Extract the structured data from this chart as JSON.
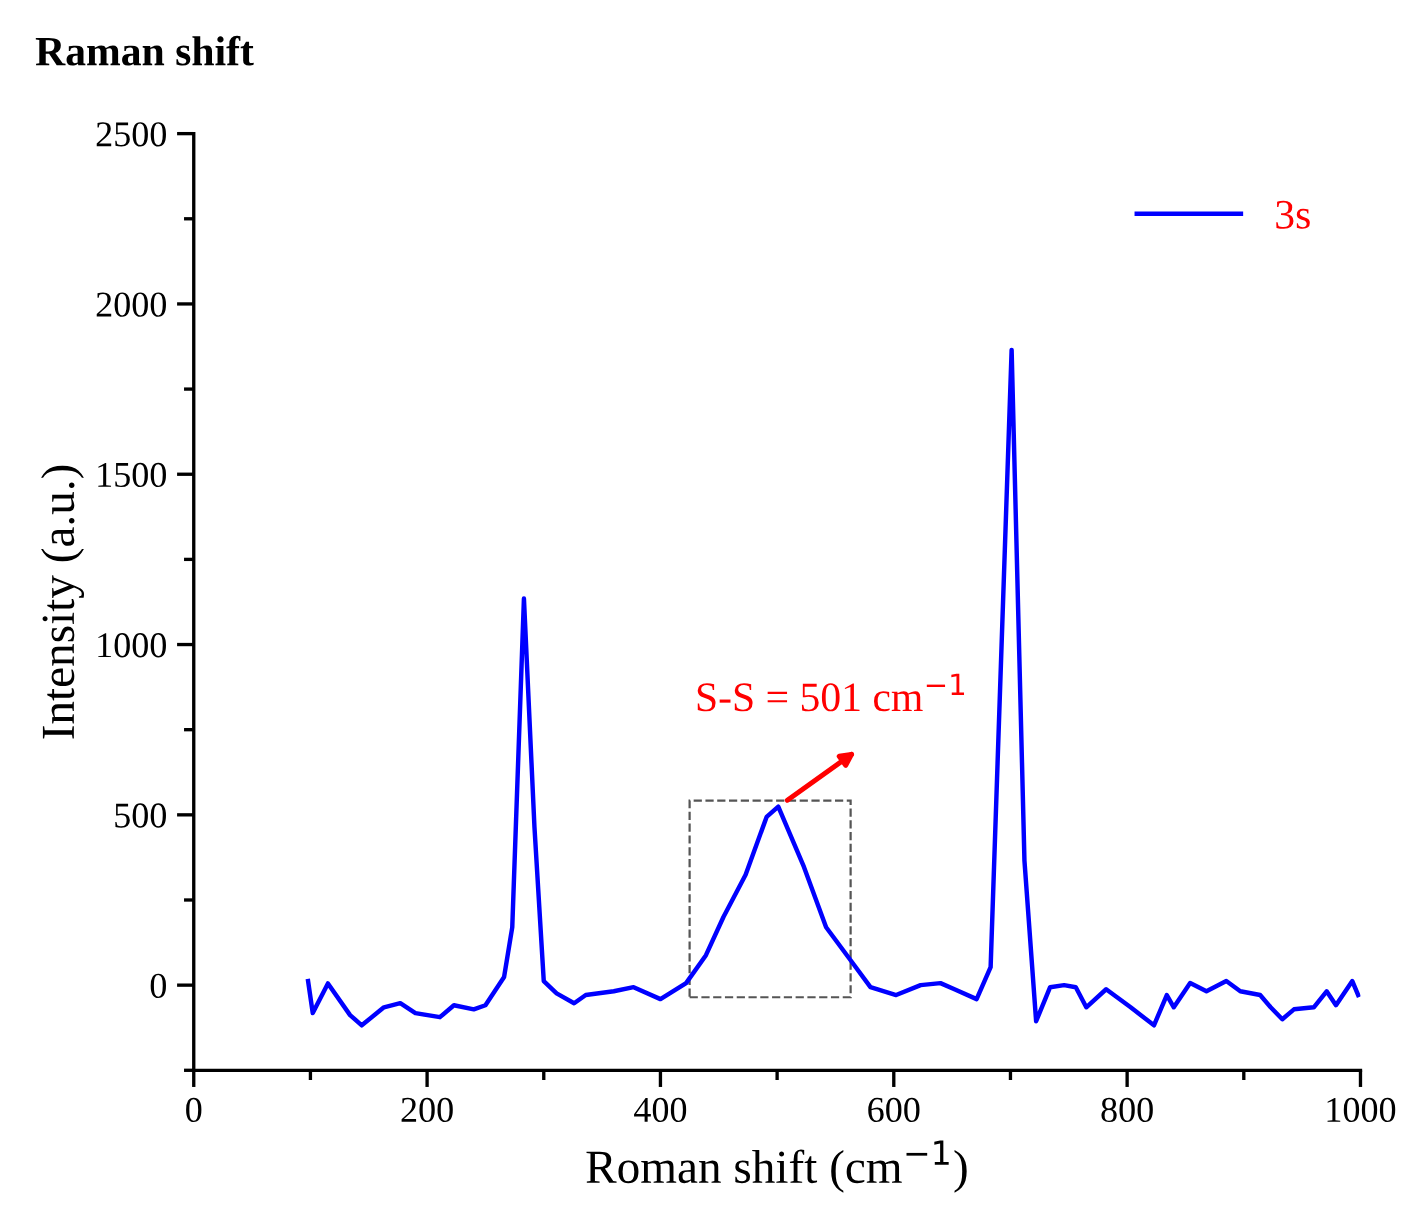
{
  "chart_data": {
    "type": "line",
    "title": "Raman shift",
    "xlabel": "Roman shift (cm$^{−1}$)",
    "ylabel": "Intensity (a.u.)",
    "x": [
      98,
      102,
      115,
      134,
      144,
      163,
      177,
      190,
      211,
      223,
      240,
      250,
      266,
      273,
      283,
      292,
      300,
      311,
      326,
      336,
      360,
      377,
      400,
      422,
      439,
      454,
      473,
      491,
      501,
      523,
      542,
      566,
      580,
      602,
      623,
      640,
      652,
      671,
      683,
      701,
      712,
      722,
      734,
      746,
      756,
      765,
      782,
      803,
      823,
      834,
      840,
      854,
      868,
      885,
      897,
      914,
      923,
      933,
      943,
      960,
      971,
      979,
      993,
      998
    ],
    "series": [
      {
        "name": "3s",
        "color": "#0000ff",
        "values": [
          12,
          -82,
          5,
          -88,
          -118,
          -65,
          -53,
          -82,
          -94,
          -59,
          -71,
          -59,
          24,
          170,
          1135,
          465,
          12,
          -24,
          -53,
          -29,
          -18,
          -6,
          -41,
          6,
          88,
          200,
          324,
          494,
          524,
          347,
          170,
          59,
          -6,
          -29,
          0,
          6,
          -12,
          -41,
          53,
          1865,
          365,
          -106,
          -6,
          0,
          -6,
          -65,
          -12,
          -65,
          -118,
          -29,
          -65,
          6,
          -18,
          12,
          -18,
          -29,
          -65,
          -100,
          -71,
          -65,
          -18,
          -59,
          12,
          -29
        ]
      }
    ],
    "annotations": [
      {
        "text": "S-S = 501 cm$^{−1}$",
        "x": 501,
        "y": 524
      }
    ],
    "xlim": [
      0,
      1000
    ],
    "ylim": [
      -250,
      2500
    ],
    "xticks": [
      0,
      200,
      400,
      600,
      800,
      1000
    ],
    "yticks": [
      0,
      500,
      1000,
      1500,
      2000,
      2500
    ],
    "grid": false,
    "legend": "top right",
    "marker": "none",
    "line_style": "solid"
  }
}
